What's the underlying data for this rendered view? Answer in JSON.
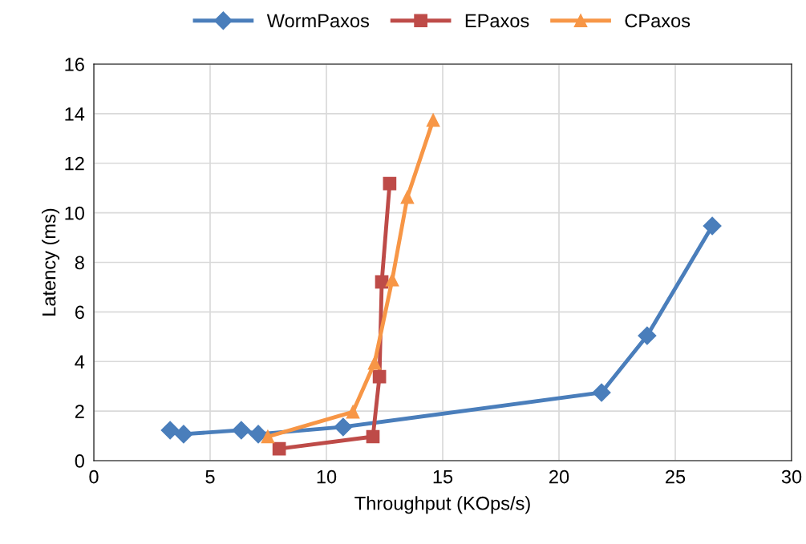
{
  "chart_data": {
    "type": "line",
    "xlabel": "Throughput (KOps/s)",
    "ylabel": "Latency (ms)",
    "xlim": [
      0,
      30
    ],
    "xticks": [
      0,
      5,
      10,
      15,
      20,
      25,
      30
    ],
    "ylim": [
      0,
      16
    ],
    "yticks": [
      0,
      2,
      4,
      6,
      8,
      10,
      12,
      14,
      16
    ],
    "grid": true,
    "legend": "top",
    "series": [
      {
        "name": "WormPaxos",
        "color": "#4a7ebb",
        "marker": "diamond",
        "x": [
          3.28,
          3.86,
          6.34,
          7.07,
          10.72,
          21.83,
          23.79,
          26.59
        ],
        "values": [
          1.23,
          1.07,
          1.23,
          1.07,
          1.36,
          2.75,
          5.04,
          9.47
        ]
      },
      {
        "name": "EPaxos",
        "color": "#be4b48",
        "marker": "square",
        "x": [
          7.97,
          12.0,
          12.28,
          12.38,
          12.72
        ],
        "values": [
          0.48,
          0.97,
          3.39,
          7.21,
          11.18
        ]
      },
      {
        "name": "CPaxos",
        "color": "#f79646",
        "marker": "triangle",
        "x": [
          7.48,
          11.14,
          12.07,
          12.83,
          13.48,
          14.59
        ],
        "values": [
          0.97,
          1.97,
          3.94,
          7.3,
          10.63,
          13.74
        ]
      }
    ]
  }
}
